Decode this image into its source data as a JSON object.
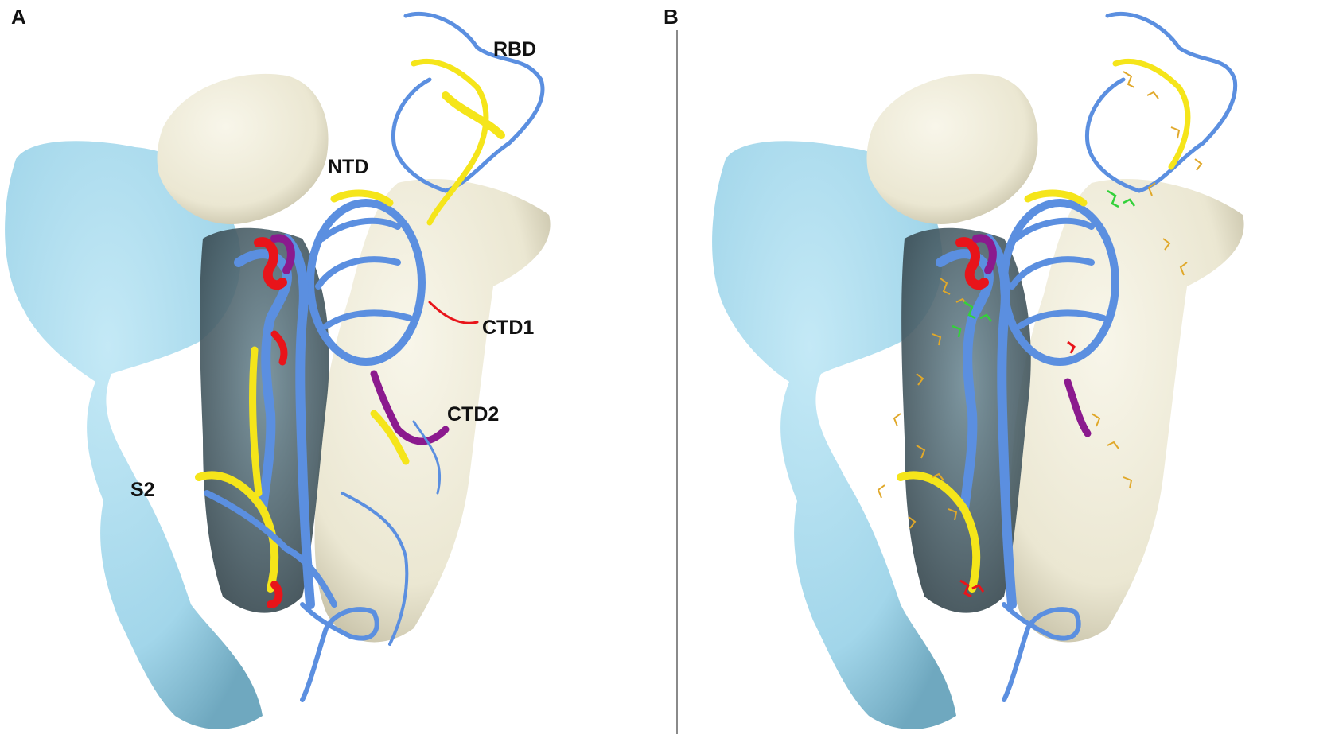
{
  "panels": [
    {
      "letter": "A",
      "labels": {
        "rbd": "RBD",
        "ntd": "NTD",
        "ctd1": "CTD1",
        "ctd2": "CTD2",
        "s2": "S2"
      }
    },
    {
      "letter": "B"
    }
  ],
  "colors": {
    "surface_blue": "#a9dcef",
    "surface_blue_shadow": "#7fb9cf",
    "surface_cream": "#f1eedd",
    "surface_cream_shadow": "#c9c4ad",
    "ribbon_blue": "#5b8fe0",
    "ribbon_yellow": "#f5e51a",
    "ribbon_red": "#e8141a",
    "ribbon_purple": "#8b1a8e",
    "stick_orange": "#e0a82a",
    "stick_green": "#33d13a"
  }
}
